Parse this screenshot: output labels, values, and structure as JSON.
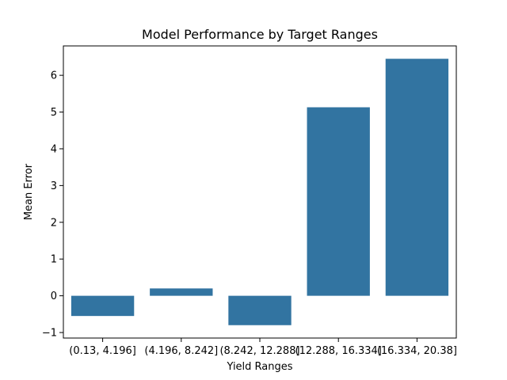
{
  "chart_data": {
    "type": "bar",
    "title": "Model Performance by Target Ranges",
    "xlabel": "Yield Ranges",
    "ylabel": "Mean Error",
    "categories": [
      "(0.13, 4.196]",
      "(4.196, 8.242]",
      "(8.242, 12.288]",
      "(12.288, 16.334]",
      "(16.334, 20.38]"
    ],
    "values": [
      -0.55,
      0.2,
      -0.8,
      5.13,
      6.45
    ],
    "ylim": [
      -1.15,
      6.8
    ],
    "yticks": [
      -1,
      0,
      1,
      2,
      3,
      4,
      5,
      6
    ],
    "grid": false,
    "bar_color": "#3274a1"
  }
}
